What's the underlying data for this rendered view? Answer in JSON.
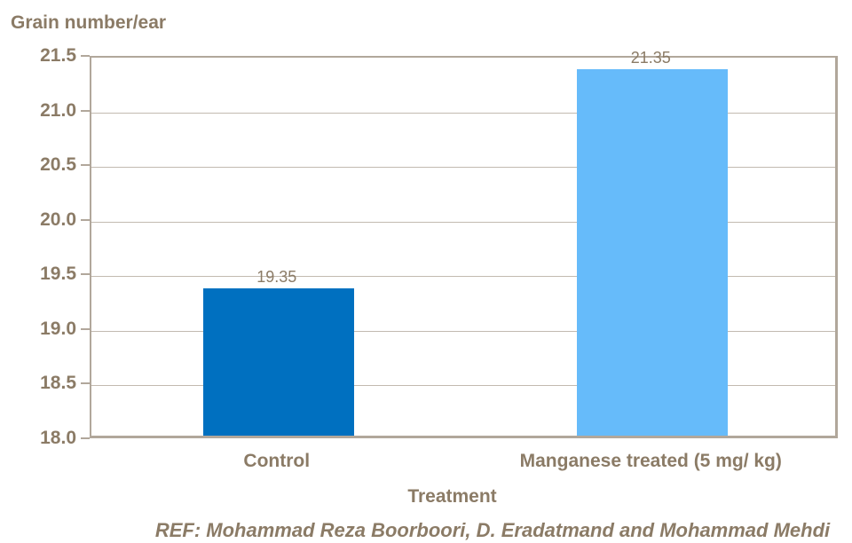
{
  "title": "Grain number/ear",
  "xaxis_title": "Treatment",
  "ref_text": "REF: Mohammad Reza Boorboori, D. Eradatmand and Mohammad Mehdi",
  "colors": {
    "text_brown": "#8B7B66",
    "gridline": "#C2BAB0",
    "axis_border": "#B1A79B",
    "bar_control": "#0070C0",
    "bar_manganese": "#66BBFA",
    "background": "#FFFFFF"
  },
  "chart_data": {
    "type": "bar",
    "title": "Grain number/ear",
    "xlabel": "Treatment",
    "ylabel": "Grain number/ear",
    "categories": [
      "Control",
      "Manganese treated (5 mg/ kg)"
    ],
    "values": [
      19.35,
      21.35
    ],
    "data_labels": [
      "19.35",
      "21.35"
    ],
    "bar_colors": [
      "#0070C0",
      "#66BBFA"
    ],
    "ylim": [
      18.0,
      21.5
    ],
    "ytick_step": 0.5,
    "ytick_labels": [
      "21.5",
      "21.0",
      "20.5",
      "20.0",
      "19.5",
      "19.0",
      "18.5",
      "18.0"
    ],
    "grid": true,
    "legend": false,
    "annotation": "REF: Mohammad Reza Boorboori, D. Eradatmand and Mohammad Mehdi"
  }
}
